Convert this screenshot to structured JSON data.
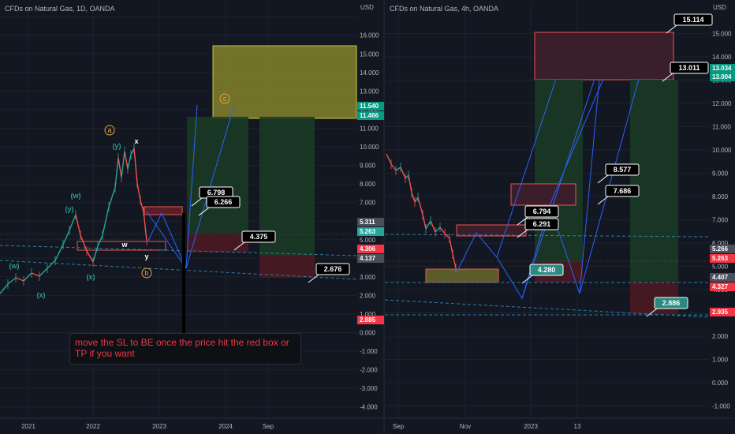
{
  "panels": {
    "left": {
      "title": "CFDs on Natural Gas, 1D, OANDA",
      "currency": "USD"
    },
    "right": {
      "title": "CFDs on Natural Gas, 4h, OANDA",
      "currency": "USD"
    }
  },
  "note": "move the SL to BE once the price hit the red box or TP if you want",
  "colors": {
    "background": "#131722",
    "axis_text": "#b2b5be",
    "grid": "#1e222d",
    "candle_up": "#26a69a",
    "candle_down": "#ef5350",
    "projection": "#2962ff",
    "dashed": "#2a7fa8",
    "tp_zone": "#1b3a26",
    "sl_zone": "#4a1a22",
    "target_box_yellow": "#8b8a2e",
    "target_box_red": "#3a1e2a",
    "price_green": "#089981",
    "price_red": "#f23645",
    "price_gray": "#4b4f5b",
    "wave_orange": "#e8a33d",
    "wave_green": "#2e9c8a"
  },
  "chart_data": [
    {
      "type": "line",
      "title": "CFDs on Natural Gas, 1D, OANDA",
      "x_ticks": [
        "2021",
        "2022",
        "2023",
        "2024",
        "Sep"
      ],
      "y_ticks": [
        -4,
        -3,
        -2,
        -1,
        0,
        1,
        2,
        3,
        4,
        5,
        6,
        7,
        8,
        9,
        10,
        11,
        12,
        13,
        14,
        15,
        16,
        17
      ],
      "y_tick_labels": [
        "-4.000",
        "-3.000",
        "-2.000",
        "-1.000",
        "0.000",
        "1.000",
        "2.000",
        "3.000",
        "4.000",
        "5.000",
        "6.000",
        "7.000",
        "8.000",
        "9.000",
        "10.000",
        "11.000",
        "12.000",
        "13.000",
        "14.000",
        "15.000",
        "16.000",
        ""
      ],
      "ylim": [
        -4.5,
        17.3
      ],
      "price_tags": [
        {
          "value": 11.54,
          "text": "11.540",
          "color": "green"
        },
        {
          "value": 11.466,
          "text": "11.466",
          "color": "green"
        },
        {
          "value": 5.311,
          "text": "5.311",
          "color": "gray"
        },
        {
          "value": 5.263,
          "text": "5.263",
          "color": "teal"
        },
        {
          "value": 4.306,
          "text": "4.306",
          "color": "red"
        },
        {
          "value": 4.137,
          "text": "4.137",
          "color": "gray"
        },
        {
          "value": 2.885,
          "text": "2.885",
          "color": "red"
        }
      ],
      "callouts": [
        {
          "text": "6.798",
          "value": 6.798
        },
        {
          "text": "6.266",
          "value": 6.266
        },
        {
          "text": "4.375",
          "value": 4.375
        },
        {
          "text": "2.676",
          "value": 2.676
        }
      ],
      "wave_labels": [
        "(w)",
        "(x)",
        "(y)",
        "(w)",
        "(x)",
        "(y)",
        "w",
        "x",
        "y",
        "a",
        "b",
        "c"
      ]
    },
    {
      "type": "line",
      "title": "CFDs on Natural Gas, 4h, OANDA",
      "x_ticks": [
        "Sep",
        "Nov",
        "2023",
        "13"
      ],
      "y_ticks": [
        -1,
        0,
        1,
        2,
        3,
        4,
        5,
        6,
        7,
        8,
        9,
        10,
        11,
        12,
        13,
        14,
        15
      ],
      "y_tick_labels": [
        "-1.000",
        "0.000",
        "1.000",
        "2.000",
        "3.000",
        "4.000",
        "5.000",
        "6.000",
        "7.000",
        "8.000",
        "9.000",
        "10.000",
        "11.000",
        "12.000",
        "13.000",
        "14.000",
        "15.000"
      ],
      "ylim": [
        -1.5,
        16.0
      ],
      "price_tags": [
        {
          "value": 13.034,
          "text": "13.034",
          "color": "green"
        },
        {
          "value": 13.004,
          "text": "13.004",
          "color": "green"
        },
        {
          "value": 5.266,
          "text": "5.266",
          "color": "gray"
        },
        {
          "value": 5.263,
          "text": "5.263",
          "color": "red"
        },
        {
          "value": 4.407,
          "text": "4.407",
          "color": "gray"
        },
        {
          "value": 4.327,
          "text": "4.327",
          "color": "red"
        },
        {
          "value": 2.935,
          "text": "2.935",
          "color": "red"
        }
      ],
      "callouts": [
        {
          "text": "15.114",
          "value": 15.114
        },
        {
          "text": "13.011",
          "value": 13.011
        },
        {
          "text": "8.577",
          "value": 8.577
        },
        {
          "text": "7.686",
          "value": 7.686
        },
        {
          "text": "6.794",
          "value": 6.794
        },
        {
          "text": "6.291",
          "value": 6.291
        },
        {
          "text": "4.280",
          "value": 4.28
        },
        {
          "text": "2.886",
          "value": 2.886
        }
      ]
    }
  ]
}
